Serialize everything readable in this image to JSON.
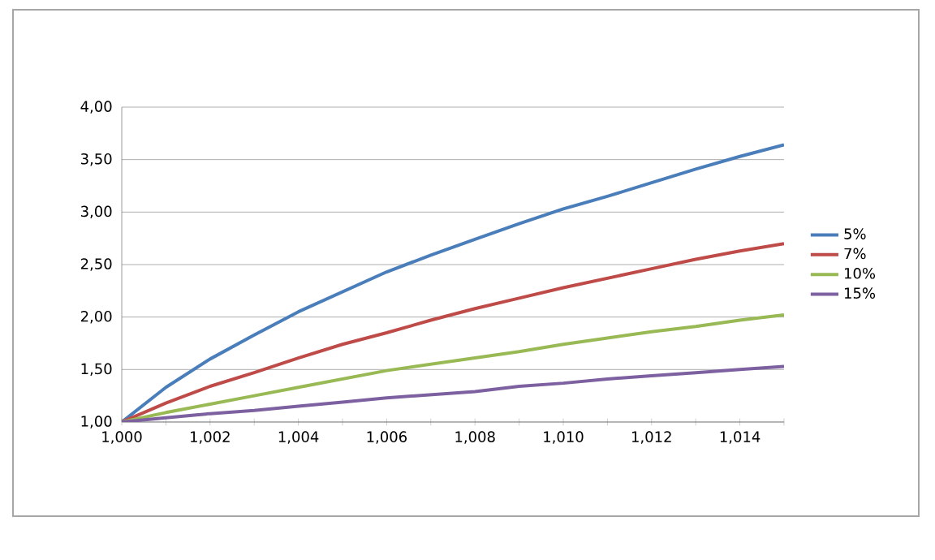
{
  "chart_data": {
    "type": "line",
    "categories": [
      "1,000",
      null,
      "1,002",
      null,
      "1,004",
      null,
      "1,006",
      null,
      "1,008",
      null,
      "1,010",
      null,
      "1,012",
      null,
      "1,014",
      null
    ],
    "series": [
      {
        "name": "5%",
        "color": "#4a7ebb",
        "values": [
          1.0,
          1.33,
          1.6,
          1.83,
          2.05,
          2.24,
          2.43,
          2.59,
          2.74,
          2.89,
          3.03,
          3.15,
          3.28,
          3.41,
          3.53,
          3.64
        ]
      },
      {
        "name": "7%",
        "color": "#be4b48",
        "values": [
          1.0,
          1.18,
          1.34,
          1.47,
          1.61,
          1.74,
          1.85,
          1.97,
          2.08,
          2.18,
          2.28,
          2.37,
          2.46,
          2.55,
          2.63,
          2.7
        ]
      },
      {
        "name": "10%",
        "color": "#98b954",
        "values": [
          1.0,
          1.09,
          1.17,
          1.25,
          1.33,
          1.41,
          1.49,
          1.55,
          1.61,
          1.67,
          1.74,
          1.8,
          1.86,
          1.91,
          1.97,
          2.02
        ]
      },
      {
        "name": "15%",
        "color": "#7d60a0",
        "values": [
          1.0,
          1.04,
          1.08,
          1.11,
          1.15,
          1.19,
          1.23,
          1.26,
          1.29,
          1.34,
          1.37,
          1.41,
          1.44,
          1.47,
          1.5,
          1.53
        ]
      }
    ],
    "ylim": [
      1.0,
      4.0
    ],
    "yticks": [
      {
        "value": 1.0,
        "label": "1,00"
      },
      {
        "value": 1.5,
        "label": "1,50"
      },
      {
        "value": 2.0,
        "label": "2,00"
      },
      {
        "value": 2.5,
        "label": "2,50"
      },
      {
        "value": 3.0,
        "label": "3,00"
      },
      {
        "value": 3.5,
        "label": "3,50"
      },
      {
        "value": 4.0,
        "label": "4,00"
      }
    ],
    "grid": "y",
    "legend": "right",
    "marker": "none",
    "line_style": "solid"
  }
}
